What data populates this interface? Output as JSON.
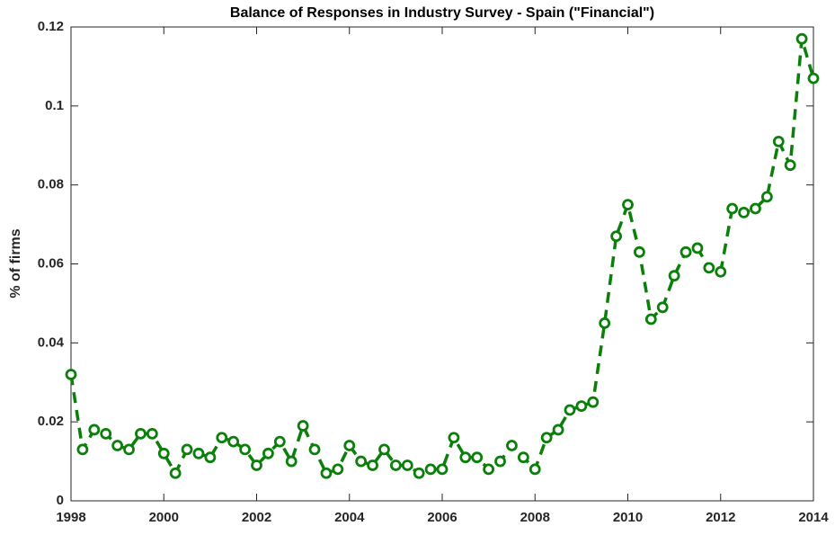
{
  "chart_data": {
    "type": "line",
    "title": "Balance of Responses in Industry Survey - Spain (\"Financial\")",
    "ylabel": "% of firms",
    "x": [
      1998,
      1998.25,
      1998.5,
      1998.75,
      1999,
      1999.25,
      1999.5,
      1999.75,
      2000,
      2000.25,
      2000.5,
      2000.75,
      2001,
      2001.25,
      2001.5,
      2001.75,
      2002,
      2002.25,
      2002.5,
      2002.75,
      2003,
      2003.25,
      2003.5,
      2003.75,
      2004,
      2004.25,
      2004.5,
      2004.75,
      2005,
      2005.25,
      2005.5,
      2005.75,
      2006,
      2006.25,
      2006.5,
      2006.75,
      2007,
      2007.25,
      2007.5,
      2007.75,
      2008,
      2008.25,
      2008.5,
      2008.75,
      2009,
      2009.25,
      2009.5,
      2009.75,
      2010,
      2010.25,
      2010.5,
      2010.75,
      2011,
      2011.25,
      2011.5,
      2011.75,
      2012,
      2012.25,
      2012.5,
      2012.75,
      2013,
      2013.25,
      2013.5,
      2013.75,
      2014
    ],
    "series": [
      {
        "color": "#0a800a",
        "values": [
          0.032,
          0.013,
          0.018,
          0.017,
          0.014,
          0.013,
          0.017,
          0.017,
          0.012,
          0.007,
          0.013,
          0.012,
          0.011,
          0.016,
          0.015,
          0.013,
          0.009,
          0.012,
          0.015,
          0.01,
          0.019,
          0.013,
          0.007,
          0.008,
          0.014,
          0.01,
          0.009,
          0.013,
          0.009,
          0.009,
          0.007,
          0.008,
          0.008,
          0.016,
          0.011,
          0.011,
          0.008,
          0.01,
          0.014,
          0.011,
          0.008,
          0.016,
          0.018,
          0.023,
          0.024,
          0.025,
          0.045,
          0.067,
          0.075,
          0.063,
          0.046,
          0.049,
          0.057,
          0.063,
          0.064,
          0.059,
          0.058,
          0.074,
          0.073,
          0.074,
          0.077,
          0.091,
          0.085,
          0.117,
          0.107
        ]
      }
    ],
    "xlim": [
      1998,
      2014
    ],
    "xticks": [
      1998,
      2000,
      2002,
      2004,
      2006,
      2008,
      2010,
      2012,
      2014
    ],
    "ylim": [
      0,
      0.12
    ],
    "yticks": [
      0,
      0.02,
      0.04,
      0.06,
      0.08,
      0.1,
      0.12
    ]
  }
}
